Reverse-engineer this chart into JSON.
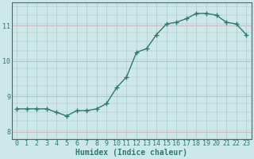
{
  "xlabel": "Humidex (Indice chaleur)",
  "ylabel": "",
  "x": [
    0,
    1,
    2,
    3,
    4,
    5,
    6,
    7,
    8,
    9,
    10,
    11,
    12,
    13,
    14,
    15,
    16,
    17,
    18,
    19,
    20,
    21,
    22,
    23
  ],
  "y": [
    8.65,
    8.65,
    8.65,
    8.65,
    8.55,
    8.45,
    8.6,
    8.6,
    8.65,
    8.8,
    9.25,
    9.55,
    10.25,
    10.35,
    10.75,
    11.05,
    11.1,
    11.2,
    11.35,
    11.35,
    11.3,
    11.1,
    11.05,
    10.75
  ],
  "line_color": "#2d7a6e",
  "bg_color": "#cce8e8",
  "grid_h_color": "#c8b0b8",
  "grid_v_color": "#a8cece",
  "ylim": [
    7.8,
    11.65
  ],
  "xlim": [
    -0.5,
    23.5
  ],
  "yticks": [
    8,
    9,
    10,
    11
  ],
  "xticks": [
    0,
    1,
    2,
    3,
    4,
    5,
    6,
    7,
    8,
    9,
    10,
    11,
    12,
    13,
    14,
    15,
    16,
    17,
    18,
    19,
    20,
    21,
    22,
    23
  ],
  "marker": "+",
  "markersize": 4,
  "linewidth": 1.0,
  "xlabel_fontsize": 7,
  "tick_fontsize": 6,
  "spine_color": "#556666"
}
